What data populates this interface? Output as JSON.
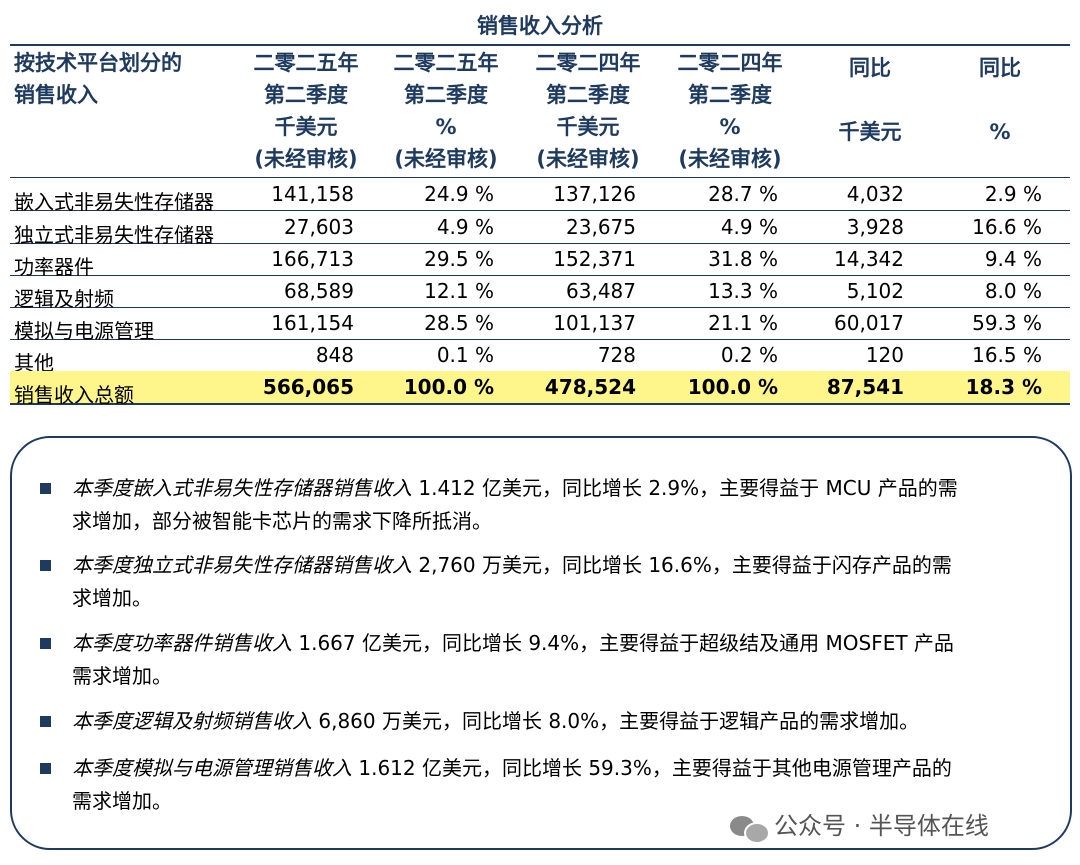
{
  "title": "销售收入分析",
  "header": {
    "first": [
      "按技术平台划分的",
      "销售收入"
    ],
    "columns": [
      [
        "二零二五年",
        "第二季度",
        "千美元",
        "(未经审核)"
      ],
      [
        "二零二五年",
        "第二季度",
        "%",
        "(未经审核)"
      ],
      [
        "二零二四年",
        "第二季度",
        "千美元",
        "(未经审核)"
      ],
      [
        "二零二四年",
        "第二季度",
        "%",
        "(未经审核)"
      ],
      [
        "同比",
        "",
        "千美元",
        ""
      ],
      [
        "同比",
        "",
        "%",
        ""
      ]
    ]
  },
  "rows": [
    {
      "label": "嵌入式非易失性存储器",
      "values": [
        "141,158",
        "24.9 %",
        "137,126",
        "28.7 %",
        "4,032",
        "2.9 %"
      ]
    },
    {
      "label": "独立式非易失性存储器",
      "values": [
        "27,603",
        "4.9 %",
        "23,675",
        "4.9 %",
        "3,928",
        "16.6 %"
      ]
    },
    {
      "label": "功率器件",
      "values": [
        "166,713",
        "29.5 %",
        "152,371",
        "31.8 %",
        "14,342",
        "9.4 %"
      ]
    },
    {
      "label": "逻辑及射频",
      "values": [
        "68,589",
        "12.1 %",
        "63,487",
        "13.3 %",
        "5,102",
        "8.0 %"
      ]
    },
    {
      "label": "模拟与电源管理",
      "values": [
        "161,154",
        "28.5 %",
        "101,137",
        "21.1 %",
        "60,017",
        "59.3 %"
      ]
    },
    {
      "label": "其他",
      "values": [
        "848",
        "0.1 %",
        "728",
        "0.2 %",
        "120",
        "16.5 %"
      ]
    }
  ],
  "total": {
    "label": "销售收入总额",
    "values": [
      "566,065",
      "100.0 %",
      "478,524",
      "100.0 %",
      "87,541",
      "18.3 %"
    ]
  },
  "notes": [
    {
      "italic": "本季度嵌入式非易失性存储器销售收入",
      "line1": " 1.412 亿美元，同比增长 2.9%，主要得益于 MCU 产品的需",
      "line2": "求增加，部分被智能卡芯片的需求下降所抵消。"
    },
    {
      "italic": "本季度独立式非易失性存储器销售收入",
      "line1": " 2,760 万美元，同比增长 16.6%，主要得益于闪存产品的需",
      "line2": "求增加。"
    },
    {
      "italic": "本季度功率器件销售收入",
      "line1": " 1.667 亿美元，同比增长 9.4%，主要得益于超级结及通用 MOSFET 产品",
      "line2": "需求增加。"
    },
    {
      "italic": "本季度逻辑及射频销售收入",
      "line1": " 6,860 万美元，同比增长 8.0%，主要得益于逻辑产品的需求增加。",
      "line2": ""
    },
    {
      "italic": "本季度模拟与电源管理销售收入",
      "line1": " 1.612 亿美元，同比增长 59.3%，主要得益于其他电源管理产品的",
      "line2": "需求增加。"
    }
  ],
  "watermark": "公众号 · 半导体在线",
  "colors": {
    "header": "#1e3a5f",
    "total_highlight": "#fef68a"
  }
}
